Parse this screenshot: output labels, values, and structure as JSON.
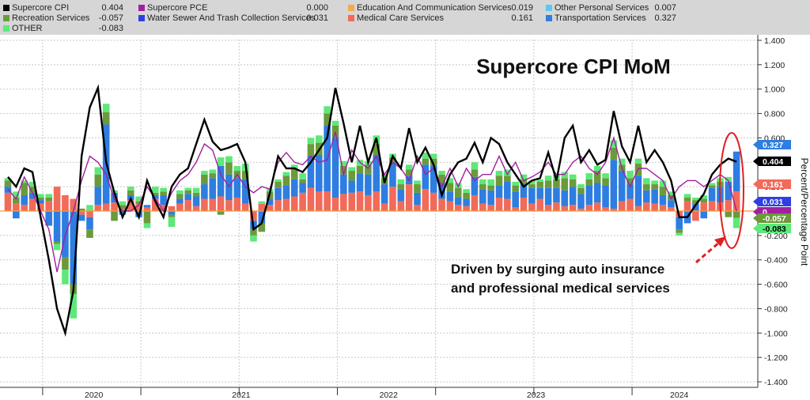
{
  "legend": [
    {
      "name": "Supercore CPI",
      "value": "0.404",
      "color": "#000000"
    },
    {
      "name": "Recreation Services",
      "value": "-0.057",
      "color": "#6a9a3a"
    },
    {
      "name": "OTHER",
      "value": "-0.083",
      "color": "#5ee87a"
    },
    {
      "name": "Supercore PCE",
      "value": "0.000",
      "color": "#a020a0"
    },
    {
      "name": "Water Sewer And Trash Collection Services",
      "value": "0.031",
      "color": "#3040e0"
    },
    {
      "name": "Education And Communication Services",
      "value": "0.019",
      "color": "#f5a94e"
    },
    {
      "name": "Medical Care Services",
      "value": "0.161",
      "color": "#f26a5a"
    },
    {
      "name": "Other Personal Services",
      "value": "0.007",
      "color": "#5cc8f0"
    },
    {
      "name": "Transportation Services",
      "value": "0.327",
      "color": "#2e7de0"
    }
  ],
  "chart_data": {
    "type": "bar",
    "title": "Supercore CPI MoM",
    "ylabel": "Percent/Percentage Point",
    "ylim": [
      -1.4,
      1.4
    ],
    "yticks": [
      "1.400",
      "1.200",
      "1.000",
      "0.800",
      "0.600",
      "0.400",
      "0.200",
      "0.000",
      "-0.200",
      "-0.400",
      "-0.600",
      "-0.800",
      "-1.000",
      "-1.200",
      "-1.400"
    ],
    "x_tick_labels": [
      "2020",
      "2021",
      "2022",
      "2023",
      "2024"
    ],
    "annotation": [
      "Driven by surging auto insurance",
      "and professional medical services"
    ],
    "last_value_tags": [
      {
        "text": "0.327",
        "value": 0.327,
        "color": "#2e7de0",
        "text_color": "#ffffff"
      },
      {
        "text": "0.404",
        "value": 0.404,
        "color": "#000000",
        "text_color": "#ffffff"
      },
      {
        "text": "0.161",
        "value": 0.161,
        "color": "#f26a5a",
        "text_color": "#ffffff"
      },
      {
        "text": "0.031",
        "value": 0.031,
        "color": "#3040e0",
        "text_color": "#ffffff"
      },
      {
        "text": "0",
        "value": 0.0,
        "color": "#a020a0",
        "text_color": "#ffffff"
      },
      {
        "text": "-0.057",
        "value": -0.057,
        "color": "#6a9a3a",
        "text_color": "#ffffff"
      },
      {
        "text": "-0.083",
        "value": -0.083,
        "color": "#5ee87a",
        "text_color": "#000000"
      }
    ],
    "series": [
      {
        "name": "Medical Care Services",
        "color": "#f26a5a",
        "values": [
          0.15,
          0.06,
          0.05,
          0.1,
          0.06,
          0.08,
          0.2,
          0.13,
          0.1,
          -0.03,
          -0.05,
          0.05,
          0.06,
          0.07,
          0.02,
          0.09,
          0.06,
          0.03,
          0.1,
          0.05,
          0.04,
          0.06,
          0.09,
          0.04,
          0.1,
          0.1,
          0.12,
          0.09,
          0.11,
          0.06,
          -0.08,
          0.06,
          0.05,
          0.09,
          0.1,
          0.12,
          0.15,
          0.19,
          0.16,
          0.16,
          0.11,
          0.14,
          0.15,
          0.16,
          0.13,
          0.16,
          0.06,
          0.2,
          0.08,
          0.22,
          0.05,
          0.18,
          0.15,
          0.1,
          0.08,
          0.05,
          0.04,
          0.13,
          0.06,
          0.05,
          0.11,
          0.1,
          0.03,
          0.11,
          0.06,
          0.1,
          0.05,
          0.07,
          0.04,
          0.05,
          0.02,
          0.05,
          0.07,
          0.03,
          0.02,
          0.08,
          0.1,
          0.04,
          0.07,
          0.06,
          0.05,
          0.03,
          -0.05,
          0.08,
          -0.08,
          0.07,
          0.08,
          0.07,
          0.09,
          0.161
        ]
      },
      {
        "name": "Transportation Services",
        "color": "#2e7de0",
        "values": [
          0.05,
          -0.06,
          0.08,
          0.05,
          0.03,
          -0.12,
          -0.25,
          -0.38,
          -0.6,
          -0.05,
          -0.1,
          0.15,
          0.65,
          0.08,
          -0.03,
          0.04,
          -0.05,
          0.02,
          0.03,
          0.08,
          -0.03,
          0.04,
          0.05,
          0.08,
          0.12,
          0.17,
          0.25,
          0.21,
          0.16,
          0.2,
          -0.07,
          -0.1,
          0.05,
          0.1,
          0.11,
          0.14,
          0.08,
          0.26,
          0.3,
          0.54,
          0.49,
          0.16,
          0.1,
          0.15,
          0.17,
          0.3,
          0.16,
          0.2,
          0.1,
          0.07,
          0.1,
          0.2,
          0.22,
          0.13,
          0.08,
          0.06,
          0.06,
          0.15,
          0.12,
          0.12,
          0.1,
          0.14,
          0.13,
          0.11,
          0.13,
          0.09,
          0.14,
          0.12,
          0.13,
          0.15,
          0.12,
          0.16,
          0.16,
          0.18,
          0.4,
          0.25,
          0.12,
          0.25,
          0.1,
          0.12,
          0.08,
          0.06,
          -0.1,
          -0.1,
          0.06,
          -0.06,
          0.11,
          0.13,
          0.15,
          0.327
        ]
      },
      {
        "name": "Recreation Services",
        "color": "#6a9a3a",
        "values": [
          0.05,
          0.05,
          0.1,
          0.05,
          0.02,
          0.03,
          -0.02,
          -0.1,
          -0.08,
          0.02,
          -0.07,
          0.1,
          0.1,
          -0.08,
          0.03,
          0.04,
          0.02,
          -0.1,
          0.02,
          0.03,
          -0.02,
          0.04,
          0.03,
          0.03,
          0.08,
          0.04,
          -0.03,
          0.1,
          0.06,
          0.07,
          -0.05,
          -0.07,
          0.06,
          0.05,
          0.08,
          0.08,
          0.03,
          0.1,
          0.1,
          0.1,
          0.1,
          0.07,
          0.08,
          0.06,
          0.08,
          0.09,
          0.05,
          0.04,
          0.04,
          0.05,
          0.07,
          0.05,
          0.06,
          0.07,
          0.07,
          0.08,
          0.05,
          0.06,
          0.04,
          0.04,
          0.08,
          0.05,
          0.05,
          0.04,
          0.03,
          0.05,
          0.06,
          0.07,
          0.1,
          0.06,
          0.05,
          0.05,
          0.1,
          0.06,
          0.1,
          0.05,
          0.05,
          0.1,
          0.05,
          0.04,
          0.07,
          0.04,
          -0.03,
          0.03,
          0.03,
          0.03,
          0.02,
          0.04,
          -0.05,
          -0.057
        ]
      },
      {
        "name": "OTHER",
        "color": "#5ee87a",
        "values": [
          0.02,
          0.05,
          0.02,
          0.04,
          0.03,
          0.03,
          -0.05,
          -0.12,
          -0.2,
          0.0,
          0.05,
          0.06,
          0.07,
          0.02,
          0.03,
          0.03,
          0.04,
          -0.04,
          0.05,
          0.03,
          -0.08,
          0.03,
          0.02,
          0.04,
          0.03,
          0.03,
          0.07,
          0.05,
          0.04,
          0.06,
          -0.05,
          0.02,
          0.02,
          0.02,
          0.03,
          0.04,
          0.05,
          0.05,
          0.06,
          0.06,
          0.04,
          0.04,
          0.03,
          0.05,
          0.03,
          0.07,
          0.03,
          0.03,
          0.04,
          0.04,
          0.03,
          0.05,
          0.04,
          0.03,
          0.04,
          0.04,
          0.03,
          0.06,
          0.04,
          0.05,
          0.04,
          0.05,
          0.03,
          0.04,
          0.03,
          0.02,
          0.04,
          0.04,
          0.05,
          0.04,
          0.03,
          0.05,
          0.04,
          0.04,
          0.06,
          0.05,
          0.06,
          0.04,
          0.05,
          0.03,
          0.05,
          0.03,
          -0.02,
          0.03,
          0.02,
          0.03,
          0.02,
          0.03,
          0.04,
          -0.083
        ]
      }
    ],
    "total": {
      "name": "Supercore CPI",
      "color": "#000000",
      "values": [
        0.28,
        0.2,
        0.35,
        0.32,
        -0.05,
        -0.4,
        -0.8,
        -1.0,
        -0.65,
        0.45,
        0.85,
        1.01,
        0.4,
        0.15,
        -0.05,
        0.1,
        -0.05,
        0.25,
        0.08,
        -0.05,
        0.2,
        0.3,
        0.35,
        0.55,
        0.75,
        0.57,
        0.5,
        0.52,
        0.55,
        0.4,
        -0.15,
        -0.1,
        0.15,
        0.45,
        0.35,
        0.35,
        0.32,
        0.4,
        0.5,
        0.6,
        1.01,
        0.72,
        0.4,
        0.7,
        0.4,
        0.6,
        0.23,
        0.45,
        0.35,
        0.68,
        0.4,
        0.52,
        0.38,
        0.13,
        0.3,
        0.4,
        0.43,
        0.56,
        0.4,
        0.6,
        0.55,
        0.4,
        0.3,
        0.2,
        0.25,
        0.27,
        0.48,
        0.25,
        0.6,
        0.7,
        0.4,
        0.5,
        0.38,
        0.42,
        0.82,
        0.53,
        0.4,
        0.7,
        0.4,
        0.5,
        0.4,
        0.25,
        -0.05,
        -0.05,
        0.05,
        0.14,
        0.3,
        0.38,
        0.43,
        0.404
      ]
    },
    "pce": {
      "name": "Supercore PCE",
      "color": "#a020a0",
      "values": [
        0.18,
        0.1,
        0.28,
        0.15,
        0.0,
        -0.15,
        -0.5,
        -0.2,
        0.0,
        0.25,
        0.45,
        0.4,
        0.3,
        0.1,
        0.0,
        0.0,
        0.05,
        0.2,
        0.1,
        0.0,
        0.15,
        0.25,
        0.3,
        0.4,
        0.55,
        0.5,
        0.3,
        0.2,
        0.3,
        0.2,
        0.15,
        0.2,
        0.18,
        0.4,
        0.48,
        0.4,
        0.38,
        0.45,
        0.4,
        0.42,
        0.65,
        0.3,
        0.5,
        0.4,
        0.35,
        0.45,
        0.3,
        0.4,
        0.35,
        0.25,
        0.45,
        0.3,
        0.35,
        0.2,
        0.35,
        0.2,
        0.35,
        0.25,
        0.3,
        0.3,
        0.45,
        0.3,
        0.4,
        0.25,
        0.28,
        0.32,
        0.4,
        0.3,
        0.3,
        0.4,
        0.45,
        0.35,
        0.3,
        0.4,
        0.6,
        0.35,
        0.2,
        0.35,
        0.35,
        0.3,
        0.25,
        0.1,
        0.2,
        0.25,
        0.25,
        0.2,
        0.25,
        0.3,
        0.25,
        0.0
      ]
    }
  }
}
